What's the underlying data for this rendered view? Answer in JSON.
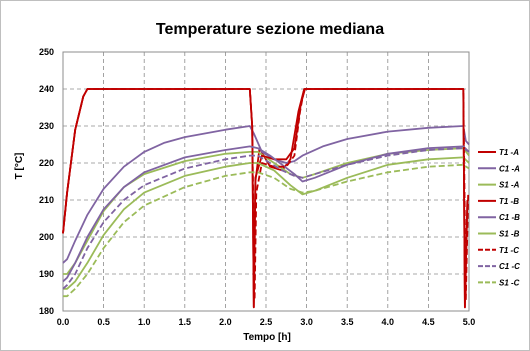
{
  "chart_data": {
    "type": "line",
    "title": "Temperature sezione mediana",
    "xlabel": "Tempo [h]",
    "ylabel": "T [°C]",
    "xlim": [
      0,
      5
    ],
    "ylim": [
      180,
      250
    ],
    "x_ticks": [
      "0.0",
      "0.5",
      "1.0",
      "1.5",
      "2.0",
      "2.5",
      "3.0",
      "3.5",
      "4.0",
      "4.5",
      "5.0"
    ],
    "y_ticks": [
      "180",
      "190",
      "200",
      "210",
      "220",
      "230",
      "240",
      "250"
    ],
    "grid": "dashed",
    "legend_position": "right",
    "series": [
      {
        "name": "T1 -A",
        "color": "#c00000",
        "dash": "solid",
        "points": [
          [
            0,
            201
          ],
          [
            0.05,
            212
          ],
          [
            0.15,
            229
          ],
          [
            0.25,
            238
          ],
          [
            0.3,
            240
          ],
          [
            2.3,
            240
          ],
          [
            2.33,
            230
          ],
          [
            2.35,
            181
          ],
          [
            2.37,
            215
          ],
          [
            2.42,
            224
          ],
          [
            2.55,
            219
          ],
          [
            2.7,
            218
          ],
          [
            2.8,
            221
          ],
          [
            2.9,
            234
          ],
          [
            2.97,
            240
          ],
          [
            4.93,
            240
          ],
          [
            4.95,
            181
          ],
          [
            4.98,
            210
          ]
        ]
      },
      {
        "name": "C1 -A",
        "color": "#8064a2",
        "dash": "solid",
        "points": [
          [
            0,
            193
          ],
          [
            0.05,
            194
          ],
          [
            0.15,
            199
          ],
          [
            0.3,
            206
          ],
          [
            0.5,
            213
          ],
          [
            0.75,
            219
          ],
          [
            1,
            223
          ],
          [
            1.25,
            225.5
          ],
          [
            1.5,
            227
          ],
          [
            2,
            229
          ],
          [
            2.3,
            230
          ],
          [
            2.35,
            228
          ],
          [
            2.45,
            223
          ],
          [
            2.6,
            221
          ],
          [
            2.75,
            220
          ],
          [
            2.85,
            220.5
          ],
          [
            2.95,
            222
          ],
          [
            3.2,
            224.5
          ],
          [
            3.5,
            226.5
          ],
          [
            4,
            228.5
          ],
          [
            4.5,
            229.5
          ],
          [
            4.93,
            230
          ],
          [
            4.96,
            226
          ],
          [
            5,
            225
          ]
        ]
      },
      {
        "name": "S1 -A",
        "color": "#9bbb59",
        "dash": "solid",
        "points": [
          [
            0,
            190
          ],
          [
            0.05,
            190
          ],
          [
            0.15,
            193
          ],
          [
            0.3,
            199
          ],
          [
            0.5,
            207
          ],
          [
            0.75,
            213.5
          ],
          [
            1,
            217
          ],
          [
            1.5,
            220.5
          ],
          [
            2,
            222.5
          ],
          [
            2.3,
            223
          ],
          [
            2.4,
            223
          ],
          [
            2.6,
            220
          ],
          [
            2.8,
            217
          ],
          [
            2.95,
            216
          ],
          [
            3.1,
            217
          ],
          [
            3.5,
            220
          ],
          [
            4,
            222.5
          ],
          [
            4.5,
            223.5
          ],
          [
            4.93,
            224
          ],
          [
            5,
            222
          ]
        ]
      },
      {
        "name": "T1 -B",
        "color": "#c00000",
        "dash": "solid",
        "points": [
          [
            0,
            201
          ],
          [
            0.05,
            212
          ],
          [
            0.15,
            229
          ],
          [
            0.25,
            238
          ],
          [
            0.3,
            240
          ],
          [
            2.3,
            240
          ],
          [
            2.33,
            230
          ],
          [
            2.35,
            181
          ],
          [
            2.37,
            216
          ],
          [
            2.45,
            222
          ],
          [
            2.6,
            221
          ],
          [
            2.75,
            221
          ],
          [
            2.85,
            224
          ],
          [
            2.93,
            236
          ],
          [
            2.98,
            240
          ],
          [
            4.93,
            240
          ],
          [
            4.95,
            181
          ],
          [
            4.98,
            210
          ]
        ]
      },
      {
        "name": "C1 -B",
        "color": "#8064a2",
        "dash": "solid",
        "points": [
          [
            0,
            188
          ],
          [
            0.05,
            189
          ],
          [
            0.15,
            193
          ],
          [
            0.3,
            200
          ],
          [
            0.5,
            207.5
          ],
          [
            0.75,
            213.5
          ],
          [
            1,
            217.5
          ],
          [
            1.5,
            221.5
          ],
          [
            2,
            223.5
          ],
          [
            2.3,
            224.5
          ],
          [
            2.4,
            224
          ],
          [
            2.55,
            222
          ],
          [
            2.7,
            219.5
          ],
          [
            2.85,
            217
          ],
          [
            2.95,
            215
          ],
          [
            3.1,
            216
          ],
          [
            3.5,
            219.5
          ],
          [
            4,
            222.5
          ],
          [
            4.5,
            224
          ],
          [
            4.93,
            224.5
          ],
          [
            5,
            223
          ]
        ]
      },
      {
        "name": "S1 -B",
        "color": "#9bbb59",
        "dash": "solid",
        "points": [
          [
            0,
            186
          ],
          [
            0.05,
            186
          ],
          [
            0.15,
            188
          ],
          [
            0.3,
            193
          ],
          [
            0.5,
            200.5
          ],
          [
            0.75,
            207.5
          ],
          [
            1,
            212
          ],
          [
            1.5,
            216.5
          ],
          [
            2,
            219
          ],
          [
            2.3,
            220
          ],
          [
            2.4,
            220
          ],
          [
            2.6,
            218
          ],
          [
            2.8,
            214
          ],
          [
            2.95,
            211.5
          ],
          [
            3.1,
            212.5
          ],
          [
            3.5,
            216
          ],
          [
            4,
            219.5
          ],
          [
            4.5,
            221
          ],
          [
            4.93,
            221.5
          ],
          [
            5,
            220
          ]
        ]
      },
      {
        "name": "T1 -C",
        "color": "#c00000",
        "dash": "dashed",
        "points": [
          [
            0,
            201
          ],
          [
            0.05,
            212
          ],
          [
            0.15,
            229
          ],
          [
            0.25,
            238
          ],
          [
            0.3,
            240
          ],
          [
            2.3,
            240
          ],
          [
            2.33,
            230
          ],
          [
            2.36,
            183
          ],
          [
            2.38,
            212
          ],
          [
            2.45,
            220
          ],
          [
            2.6,
            219
          ],
          [
            2.75,
            219
          ],
          [
            2.85,
            222
          ],
          [
            2.92,
            234
          ],
          [
            2.97,
            240
          ],
          [
            4.93,
            240
          ],
          [
            4.96,
            183
          ],
          [
            4.99,
            212
          ]
        ]
      },
      {
        "name": "C1 -C",
        "color": "#8064a2",
        "dash": "dashed",
        "points": [
          [
            0,
            186
          ],
          [
            0.05,
            187
          ],
          [
            0.15,
            190
          ],
          [
            0.3,
            197
          ],
          [
            0.5,
            204
          ],
          [
            0.75,
            210
          ],
          [
            1,
            214
          ],
          [
            1.5,
            218.5
          ],
          [
            2,
            221
          ],
          [
            2.3,
            222
          ],
          [
            2.4,
            222
          ],
          [
            2.55,
            220
          ],
          [
            2.7,
            218
          ],
          [
            2.85,
            216.5
          ],
          [
            2.95,
            216
          ],
          [
            3.1,
            217
          ],
          [
            3.5,
            219.5
          ],
          [
            4,
            222
          ],
          [
            4.5,
            223.5
          ],
          [
            4.93,
            224
          ],
          [
            5,
            223
          ]
        ]
      },
      {
        "name": "S1 -C",
        "color": "#9bbb59",
        "dash": "dashed",
        "points": [
          [
            0,
            184
          ],
          [
            0.05,
            184
          ],
          [
            0.15,
            186
          ],
          [
            0.3,
            190
          ],
          [
            0.5,
            197
          ],
          [
            0.75,
            204
          ],
          [
            1,
            208.5
          ],
          [
            1.5,
            213.5
          ],
          [
            2,
            216.5
          ],
          [
            2.3,
            217.5
          ],
          [
            2.4,
            217.5
          ],
          [
            2.6,
            216
          ],
          [
            2.8,
            213
          ],
          [
            2.95,
            212
          ],
          [
            3.1,
            212.5
          ],
          [
            3.5,
            215
          ],
          [
            4,
            217.5
          ],
          [
            4.5,
            219
          ],
          [
            4.93,
            219.5
          ],
          [
            5,
            218.5
          ]
        ]
      }
    ]
  }
}
